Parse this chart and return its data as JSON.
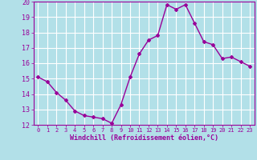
{
  "x": [
    0,
    1,
    2,
    3,
    4,
    5,
    6,
    7,
    8,
    9,
    10,
    11,
    12,
    13,
    14,
    15,
    16,
    17,
    18,
    19,
    20,
    21,
    22,
    23
  ],
  "y": [
    15.1,
    14.8,
    14.1,
    13.6,
    12.9,
    12.6,
    12.5,
    12.4,
    12.1,
    13.3,
    15.1,
    16.6,
    17.5,
    17.8,
    19.8,
    19.5,
    19.8,
    18.6,
    17.4,
    17.2,
    16.3,
    16.4,
    16.1,
    15.8
  ],
  "line_color": "#990099",
  "marker": "D",
  "marker_size": 2,
  "bg_color": "#b2e0e8",
  "grid_color": "#ffffff",
  "xlabel": "Windchill (Refroidissement éolien,°C)",
  "xlabel_color": "#990099",
  "tick_color": "#990099",
  "ylim": [
    12,
    20
  ],
  "xlim": [
    -0.5,
    23.5
  ],
  "yticks": [
    12,
    13,
    14,
    15,
    16,
    17,
    18,
    19,
    20
  ],
  "xticks": [
    0,
    1,
    2,
    3,
    4,
    5,
    6,
    7,
    8,
    9,
    10,
    11,
    12,
    13,
    14,
    15,
    16,
    17,
    18,
    19,
    20,
    21,
    22,
    23
  ],
  "line_width": 1.0
}
